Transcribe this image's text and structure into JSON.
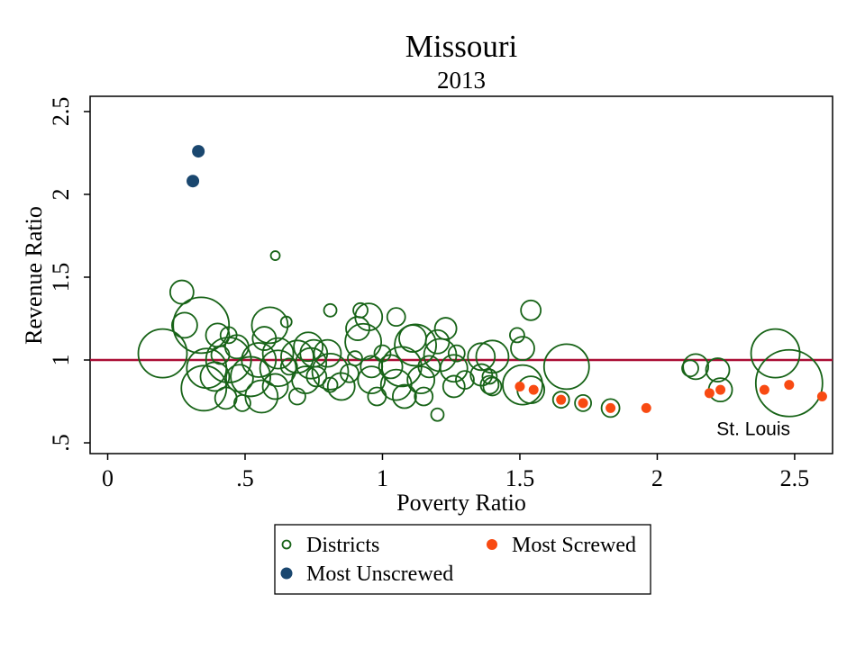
{
  "chart_data": {
    "type": "scatter",
    "title": "Missouri",
    "subtitle": "2013",
    "xlabel": "Poverty Ratio",
    "ylabel": "Revenue Ratio",
    "grid": false,
    "x_axis": {
      "range": [
        -0.064,
        2.638
      ],
      "ticks": [
        0,
        0.5,
        1,
        1.5,
        2,
        2.5
      ],
      "tick_labels": [
        "0",
        ".5",
        "1",
        "1.5",
        "2",
        "2.5"
      ]
    },
    "y_axis": {
      "range": [
        0.435,
        2.592
      ],
      "ticks": [
        0.5,
        1,
        1.5,
        2,
        2.5
      ],
      "tick_labels": [
        ".5",
        "1",
        "1.5",
        "2",
        "2.5"
      ]
    },
    "ref_line": {
      "y": 1,
      "color": "#ab0d35"
    },
    "legend": {
      "position": "bottom",
      "items": [
        {
          "label": "Districts",
          "marker": "hollow-circle",
          "color": "#176317"
        },
        {
          "label": "Most Screwed",
          "marker": "filled-circle",
          "color": "#f84a12"
        },
        {
          "label": "Most Unscrewed",
          "marker": "filled-circle",
          "color": "#1a476f"
        }
      ]
    },
    "annotations": [
      {
        "text": "St. Louis",
        "x": 2.35,
        "y": 0.59
      }
    ],
    "series": [
      {
        "name": "Districts",
        "style": "hollow",
        "color": "#176317",
        "stroke_width": 1.8,
        "points": [
          [
            0.27,
            1.41,
            13
          ],
          [
            0.28,
            1.21,
            14
          ],
          [
            0.34,
            1.21,
            31
          ],
          [
            0.2,
            1.04,
            27
          ],
          [
            0.4,
            1.15,
            13
          ],
          [
            0.36,
            0.95,
            22
          ],
          [
            0.35,
            0.83,
            25
          ],
          [
            0.44,
            1.0,
            25
          ],
          [
            0.48,
            0.89,
            15
          ],
          [
            0.55,
            1.0,
            19
          ],
          [
            0.47,
            1.08,
            13
          ],
          [
            0.57,
            1.13,
            13
          ],
          [
            0.59,
            1.21,
            20
          ],
          [
            0.62,
            0.95,
            20
          ],
          [
            0.65,
            1.23,
            6
          ],
          [
            0.43,
            0.77,
            12
          ],
          [
            0.49,
            0.74,
            9
          ],
          [
            0.56,
            0.78,
            18
          ],
          [
            0.62,
            1.04,
            17
          ],
          [
            0.75,
            1.04,
            15
          ],
          [
            0.73,
            1.08,
            16
          ],
          [
            0.74,
            0.98,
            17
          ],
          [
            0.72,
            0.88,
            15
          ],
          [
            0.8,
            1.04,
            15
          ],
          [
            0.81,
            0.93,
            20
          ],
          [
            0.85,
            0.84,
            15
          ],
          [
            0.88,
            0.92,
            10
          ],
          [
            0.96,
            0.96,
            12
          ],
          [
            0.96,
            0.88,
            15
          ],
          [
            1.03,
            0.96,
            13
          ],
          [
            1.05,
            0.85,
            17
          ],
          [
            1.08,
            0.78,
            13
          ],
          [
            1.14,
            0.88,
            15
          ],
          [
            1.17,
            0.96,
            12
          ],
          [
            1.26,
            0.95,
            15
          ],
          [
            1.26,
            0.84,
            12
          ],
          [
            1.3,
            0.88,
            10
          ],
          [
            1.36,
            0.91,
            12
          ],
          [
            1.39,
            0.85,
            10
          ],
          [
            0.81,
            1.3,
            7
          ],
          [
            0.92,
            1.3,
            8
          ],
          [
            0.95,
            1.26,
            15
          ],
          [
            0.91,
            1.19,
            13
          ],
          [
            0.93,
            1.11,
            20
          ],
          [
            1.11,
            1.13,
            15
          ],
          [
            1.12,
            1.09,
            23
          ],
          [
            1.2,
            1.11,
            13
          ],
          [
            1.21,
            1.03,
            18
          ],
          [
            1.2,
            0.67,
            7
          ],
          [
            1.36,
            1.02,
            15
          ],
          [
            1.05,
            1.26,
            10
          ],
          [
            1.23,
            1.19,
            12
          ],
          [
            0.61,
            1.63,
            5
          ],
          [
            1.54,
            1.3,
            11
          ],
          [
            1.49,
            1.15,
            8
          ],
          [
            1.51,
            1.07,
            13
          ],
          [
            1.4,
            1.02,
            18
          ],
          [
            1.39,
            0.9,
            8
          ],
          [
            1.4,
            0.84,
            10
          ],
          [
            1.67,
            0.96,
            25
          ],
          [
            1.51,
            0.85,
            22
          ],
          [
            1.54,
            0.82,
            15
          ],
          [
            1.65,
            0.76,
            9
          ],
          [
            1.73,
            0.74,
            9
          ],
          [
            1.83,
            0.71,
            10
          ],
          [
            2.14,
            0.96,
            14
          ],
          [
            2.12,
            0.95,
            9
          ],
          [
            2.22,
            0.94,
            13
          ],
          [
            2.23,
            0.82,
            13
          ],
          [
            2.43,
            1.04,
            27
          ],
          [
            2.48,
            0.86,
            37
          ],
          [
            0.41,
            1.03,
            10
          ],
          [
            0.52,
            0.9,
            22
          ],
          [
            0.61,
            0.84,
            14
          ],
          [
            0.66,
            0.96,
            9
          ],
          [
            0.76,
            0.9,
            11
          ],
          [
            0.9,
            1.01,
            8
          ],
          [
            1.0,
            1.04,
            9
          ],
          [
            1.07,
            0.96,
            22
          ],
          [
            1.15,
            0.78,
            10
          ],
          [
            1.27,
            1.04,
            9
          ],
          [
            0.69,
            0.78,
            9
          ],
          [
            0.98,
            0.78,
            10
          ],
          [
            0.81,
            0.85,
            8
          ],
          [
            0.44,
            1.15,
            9
          ],
          [
            0.39,
            0.9,
            16
          ],
          [
            0.69,
            1.02,
            18
          ]
        ]
      },
      {
        "name": "Most Unscrewed",
        "style": "filled",
        "color": "#1a476f",
        "radius": 7,
        "points": [
          [
            0.33,
            2.26
          ],
          [
            0.31,
            2.08
          ]
        ]
      },
      {
        "name": "Most Screwed",
        "style": "filled",
        "color": "#f84a12",
        "radius": 5.5,
        "points": [
          [
            1.5,
            0.84
          ],
          [
            1.55,
            0.82
          ],
          [
            1.65,
            0.76
          ],
          [
            1.73,
            0.74
          ],
          [
            1.83,
            0.71
          ],
          [
            1.96,
            0.71
          ],
          [
            2.19,
            0.8
          ],
          [
            2.23,
            0.82
          ],
          [
            2.39,
            0.82
          ],
          [
            2.48,
            0.85
          ],
          [
            2.6,
            0.78
          ]
        ]
      }
    ]
  }
}
